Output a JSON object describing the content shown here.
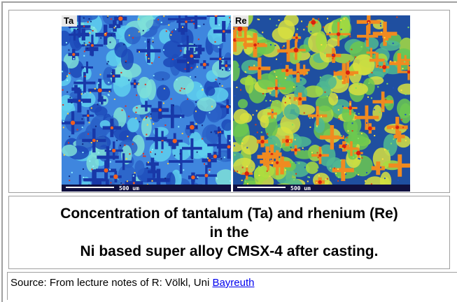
{
  "figure": {
    "panels": [
      {
        "label": "Ta",
        "scale_bar": "500 um"
      },
      {
        "label": "Re",
        "scale_bar": "500 um"
      }
    ],
    "caption": [
      "Concentration of tantalum (Ta) and rhenium (Re)",
      "in the",
      "Ni based super alloy CMSX-4 after casting."
    ]
  },
  "source": {
    "text": "Source: From lecture notes of R: Völkl, Uni",
    "link": "Bayreuth"
  }
}
